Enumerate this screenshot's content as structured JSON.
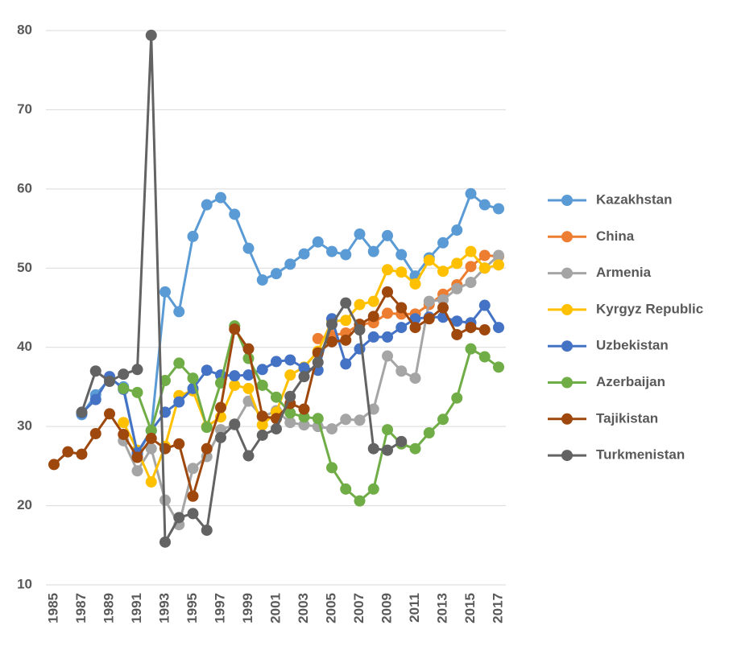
{
  "chart_data": {
    "type": "line",
    "categories": [
      "1985",
      null,
      "1987",
      null,
      "1989",
      null,
      "1991",
      null,
      "1993",
      null,
      "1995",
      null,
      "1997",
      null,
      "1999",
      null,
      "2001",
      null,
      "2003",
      null,
      "2005",
      null,
      "2007",
      null,
      "2009",
      null,
      "2011",
      null,
      "2013",
      null,
      "2015",
      null,
      "2017"
    ],
    "ylim": [
      10,
      80
    ],
    "yticks": [
      10,
      20,
      30,
      40,
      50,
      60,
      70,
      80
    ],
    "grid": true,
    "legend": "right",
    "series": [
      {
        "name": "Kazakhstan",
        "color": "#5b9bd5",
        "values": [
          null,
          null,
          31.5,
          34,
          36,
          35,
          26.5,
          29.5,
          47,
          44.5,
          54,
          58,
          58.9,
          56.8,
          52.5,
          48.5,
          49.3,
          50.5,
          51.8,
          53.3,
          52.1,
          51.7,
          54.3,
          52.1,
          54.1,
          51.7,
          49,
          51.3,
          53.2,
          54.8,
          59.4,
          58,
          57.5
        ]
      },
      {
        "name": "China",
        "color": "#ed7d31",
        "values": [
          null,
          null,
          null,
          null,
          null,
          null,
          null,
          null,
          null,
          null,
          null,
          null,
          null,
          null,
          null,
          null,
          null,
          null,
          null,
          41.1,
          41.5,
          41.8,
          42.9,
          43.1,
          44.3,
          44.2,
          44.2,
          45.4,
          46.7,
          47.9,
          50.2,
          51.6,
          51.5
        ]
      },
      {
        "name": "Armenia",
        "color": "#a5a5a5",
        "values": [
          null,
          null,
          null,
          null,
          null,
          28.2,
          24.4,
          27.2,
          20.7,
          17.6,
          24.7,
          26.2,
          29.6,
          30.2,
          33.2,
          31.2,
          32,
          30.5,
          30.2,
          30,
          29.7,
          30.9,
          30.8,
          32.2,
          38.9,
          37,
          36.1,
          45.8,
          46,
          47.4,
          48.2,
          50,
          51.6
        ]
      },
      {
        "name": "Kyrgyz Republic",
        "color": "#ffc000",
        "values": [
          null,
          null,
          null,
          null,
          null,
          30.5,
          27,
          23,
          27.5,
          33.9,
          34.5,
          30,
          31.2,
          35.2,
          34.8,
          30.2,
          31.8,
          36.5,
          37.5,
          39.5,
          43.3,
          43.4,
          45.4,
          45.8,
          49.8,
          49.5,
          48,
          51,
          49.6,
          50.6,
          52.1,
          50,
          50.4
        ]
      },
      {
        "name": "Uzbekistan",
        "color": "#4472c4",
        "values": [
          null,
          null,
          31.7,
          33.4,
          36.3,
          34.7,
          26.7,
          29.5,
          31.8,
          33.1,
          34.8,
          37.1,
          36.5,
          36.4,
          36.5,
          37.2,
          38.2,
          38.4,
          37.4,
          37.1,
          43.6,
          37.9,
          39.8,
          41.3,
          41.3,
          42.5,
          43.6,
          43.8,
          43.8,
          43.3,
          43.1,
          45.3,
          42.5
        ]
      },
      {
        "name": "Azerbaijan",
        "color": "#70ad47",
        "values": [
          null,
          null,
          null,
          null,
          null,
          34.8,
          34.3,
          29.5,
          35.8,
          38,
          36.1,
          29.9,
          35.5,
          42.7,
          38.6,
          35.2,
          33.7,
          31.7,
          31.2,
          31,
          24.8,
          22.1,
          20.6,
          22.1,
          29.6,
          27.8,
          27.2,
          29.2,
          30.9,
          33.6,
          39.8,
          38.8,
          37.5
        ]
      },
      {
        "name": "Tajikistan",
        "color": "#9e480e",
        "values": [
          25.2,
          26.8,
          26.5,
          29.1,
          31.6,
          29,
          26.1,
          28.5,
          27.2,
          27.8,
          21.2,
          27.2,
          32.4,
          42.3,
          39.8,
          31.3,
          31,
          32.9,
          32.2,
          39.3,
          40.7,
          40.9,
          42.9,
          43.9,
          47,
          45,
          42.5,
          43.6,
          45,
          41.6,
          42.5,
          42.2,
          null
        ]
      },
      {
        "name": "Turkmenistan",
        "color": "#636363",
        "values": [
          null,
          null,
          31.8,
          37,
          35.7,
          36.6,
          37.2,
          79.4,
          15.4,
          18.5,
          19,
          16.9,
          28.6,
          30.3,
          26.3,
          28.9,
          29.7,
          33.8,
          36.3,
          38.1,
          42.9,
          45.6,
          42.2,
          27.2,
          27,
          28.1,
          null,
          null,
          null,
          null,
          null,
          null,
          null
        ]
      }
    ]
  }
}
